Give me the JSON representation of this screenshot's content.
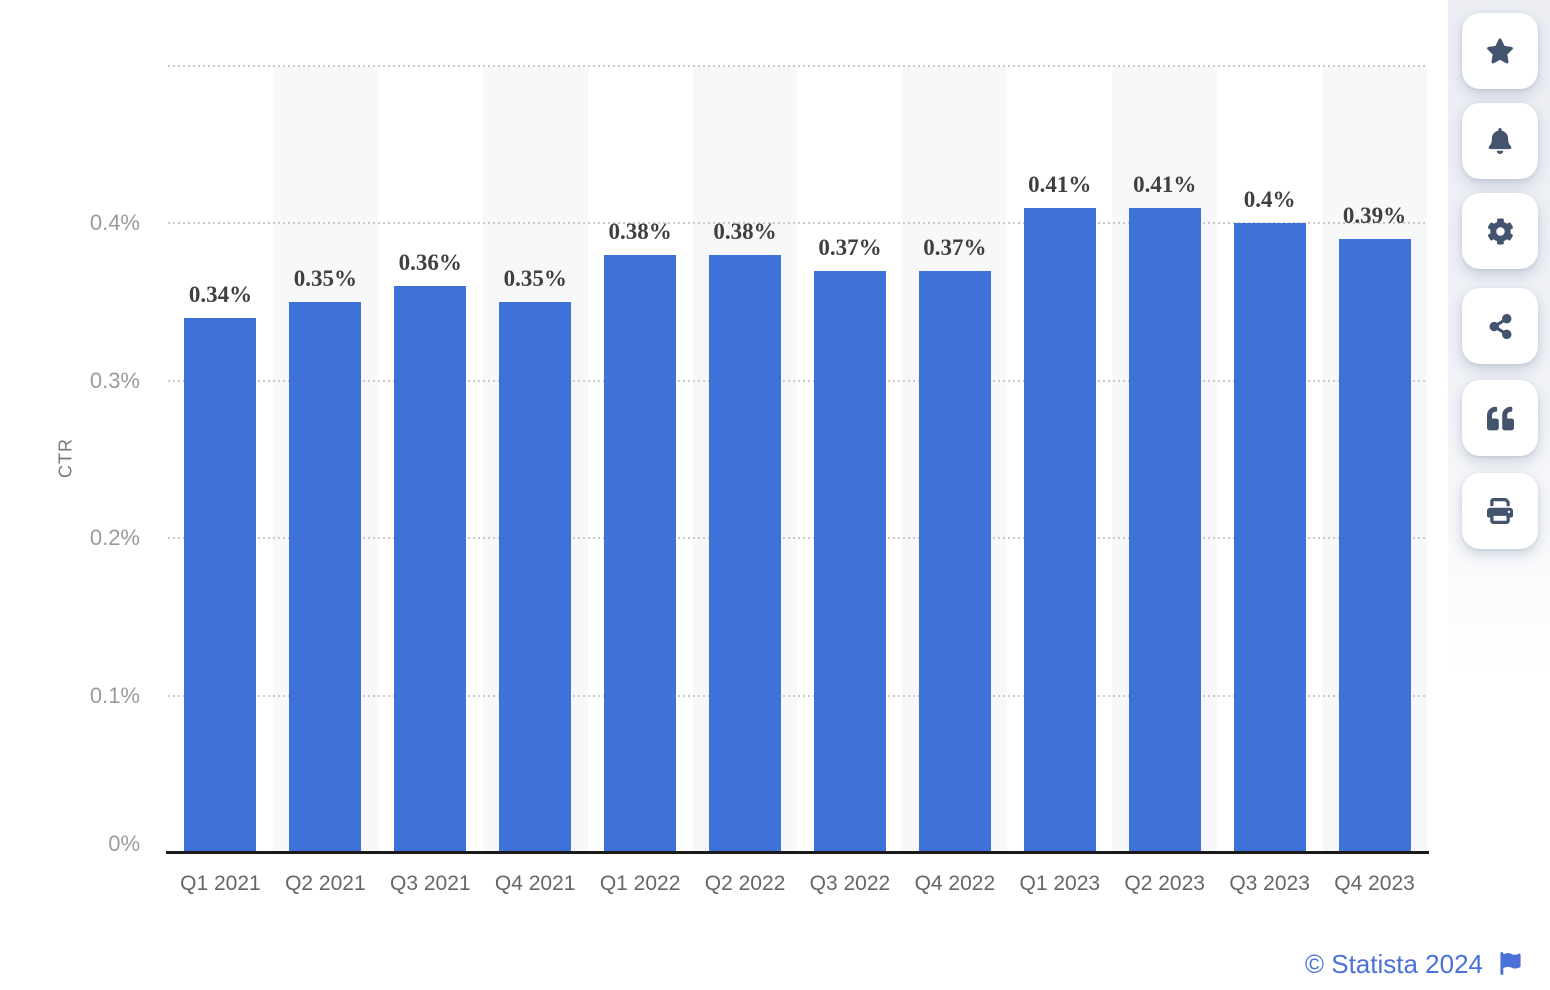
{
  "chart_data": {
    "type": "bar",
    "categories": [
      "Q1 2021",
      "Q2 2021",
      "Q3 2021",
      "Q4 2021",
      "Q1 2022",
      "Q2 2022",
      "Q3 2022",
      "Q4 2022",
      "Q1 2023",
      "Q2 2023",
      "Q3 2023",
      "Q4 2023"
    ],
    "values": [
      0.34,
      0.35,
      0.36,
      0.35,
      0.38,
      0.38,
      0.37,
      0.37,
      0.41,
      0.41,
      0.4,
      0.39
    ],
    "bar_labels": [
      "0.34%",
      "0.35%",
      "0.36%",
      "0.35%",
      "0.38%",
      "0.38%",
      "0.37%",
      "0.37%",
      "0.41%",
      "0.41%",
      "0.4%",
      "0.39%"
    ],
    "title": "",
    "xlabel": "",
    "ylabel": "CTR",
    "ylim": [
      0,
      0.5
    ],
    "yticks": [
      {
        "value": 0.4,
        "label": "0.4%"
      },
      {
        "value": 0.3,
        "label": "0.3%"
      },
      {
        "value": 0.2,
        "label": "0.2%"
      },
      {
        "value": 0.1,
        "label": "0.1%"
      },
      {
        "value": 0.0,
        "label": "0%"
      }
    ],
    "top_gridline_value": 0.5,
    "grid": "horizontal-dotted",
    "legend": "none",
    "alternating_column_bands": true
  },
  "colors": {
    "bar": "#3E72D8",
    "column_band": "#F7F8F9",
    "gridline": "#C9C9C9",
    "axis_line": "#1A1A1A",
    "y_tick_label": "#9B9B9B",
    "x_tick_label": "#666666",
    "value_label": "#3F3F3F",
    "axis_title": "#777777",
    "toolbar_icon": "#44536E",
    "footer_link": "#4A71D8"
  },
  "toolbar": {
    "items": [
      {
        "icon": "star-icon"
      },
      {
        "icon": "bell-icon"
      },
      {
        "icon": "gear-icon"
      },
      {
        "icon": "share-icon"
      },
      {
        "icon": "quote-icon"
      },
      {
        "icon": "print-icon"
      }
    ]
  },
  "footer": {
    "copyright": "© Statista 2024",
    "flag_icon": "flag-icon"
  }
}
